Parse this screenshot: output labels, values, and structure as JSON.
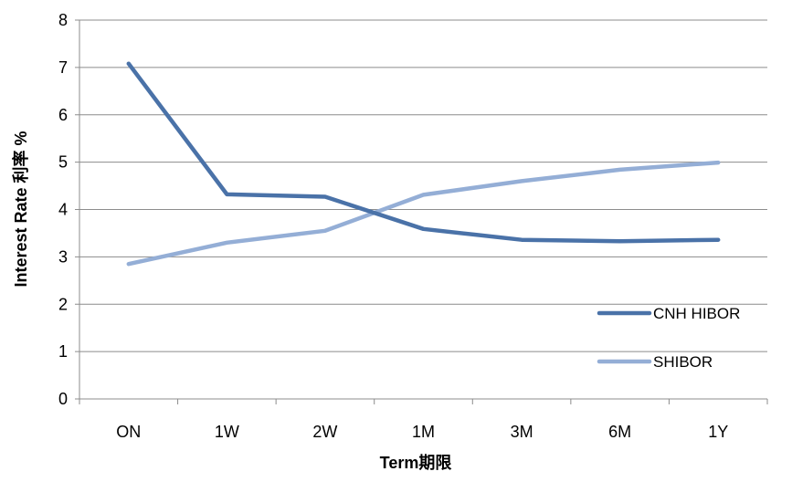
{
  "chart_data": {
    "type": "line",
    "categories": [
      "ON",
      "1W",
      "2W",
      "1M",
      "3M",
      "6M",
      "1Y"
    ],
    "series": [
      {
        "name": "CNH HIBOR",
        "color": "#4A72A8",
        "values": [
          7.08,
          4.32,
          4.27,
          3.59,
          3.36,
          3.33,
          3.36
        ]
      },
      {
        "name": "SHIBOR",
        "color": "#94AED6",
        "values": [
          2.85,
          3.3,
          3.55,
          4.31,
          4.6,
          4.84,
          4.99
        ]
      }
    ],
    "xlabel": "Term期限",
    "ylabel": "Interest Rate 利率 %",
    "ylim": [
      0,
      8
    ],
    "yticks": [
      "0",
      "1",
      "2",
      "3",
      "4",
      "5",
      "6",
      "7",
      "8"
    ],
    "grid": true,
    "legend_position": "bottom-right"
  }
}
